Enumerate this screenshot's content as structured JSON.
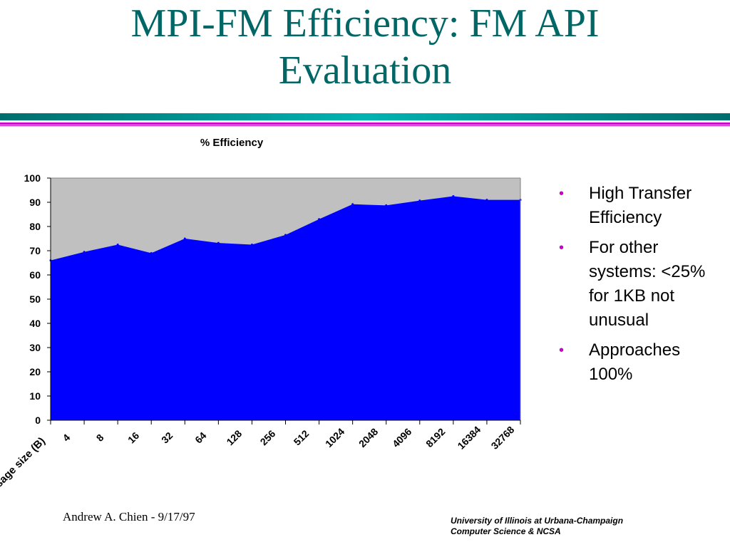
{
  "slide": {
    "title_line1": "MPI-FM Efficiency: FM API",
    "title_line2": "Evaluation"
  },
  "colors": {
    "title": "#006666",
    "divider_teal": "#006e6e",
    "divider_cyan": "#00b3b3",
    "divider_magenta": "#cc00cc",
    "area_fill": "#0000ff",
    "plot_background": "#c0c0c0",
    "bullet": "#cc00cc"
  },
  "bullets": [
    "High Transfer Efficiency",
    "For other systems: <25% for 1KB not unusual",
    "Approaches 100%"
  ],
  "footer": {
    "left": "Andrew A. Chien - 9/17/97",
    "right_line1": "University of Illinois at Urbana-Champaign",
    "right_line2": "Computer Science & NCSA"
  },
  "chart_data": {
    "type": "area",
    "title": "% Efficiency",
    "xlabel": "Message size (B)",
    "ylabel": "",
    "categories": [
      "",
      "4",
      "8",
      "16",
      "32",
      "64",
      "128",
      "256",
      "512",
      "1024",
      "2048",
      "4096",
      "8192",
      "16384",
      "32768"
    ],
    "values": [
      66,
      69.5,
      72.5,
      69,
      75,
      73.2,
      72.5,
      76.5,
      83,
      89.2,
      88.7,
      90.7,
      92.5,
      91,
      91
    ],
    "ylim": [
      0,
      100
    ],
    "yticks": [
      0,
      10,
      20,
      30,
      40,
      50,
      60,
      70,
      80,
      90,
      100
    ],
    "grid": false,
    "legend": "none"
  }
}
